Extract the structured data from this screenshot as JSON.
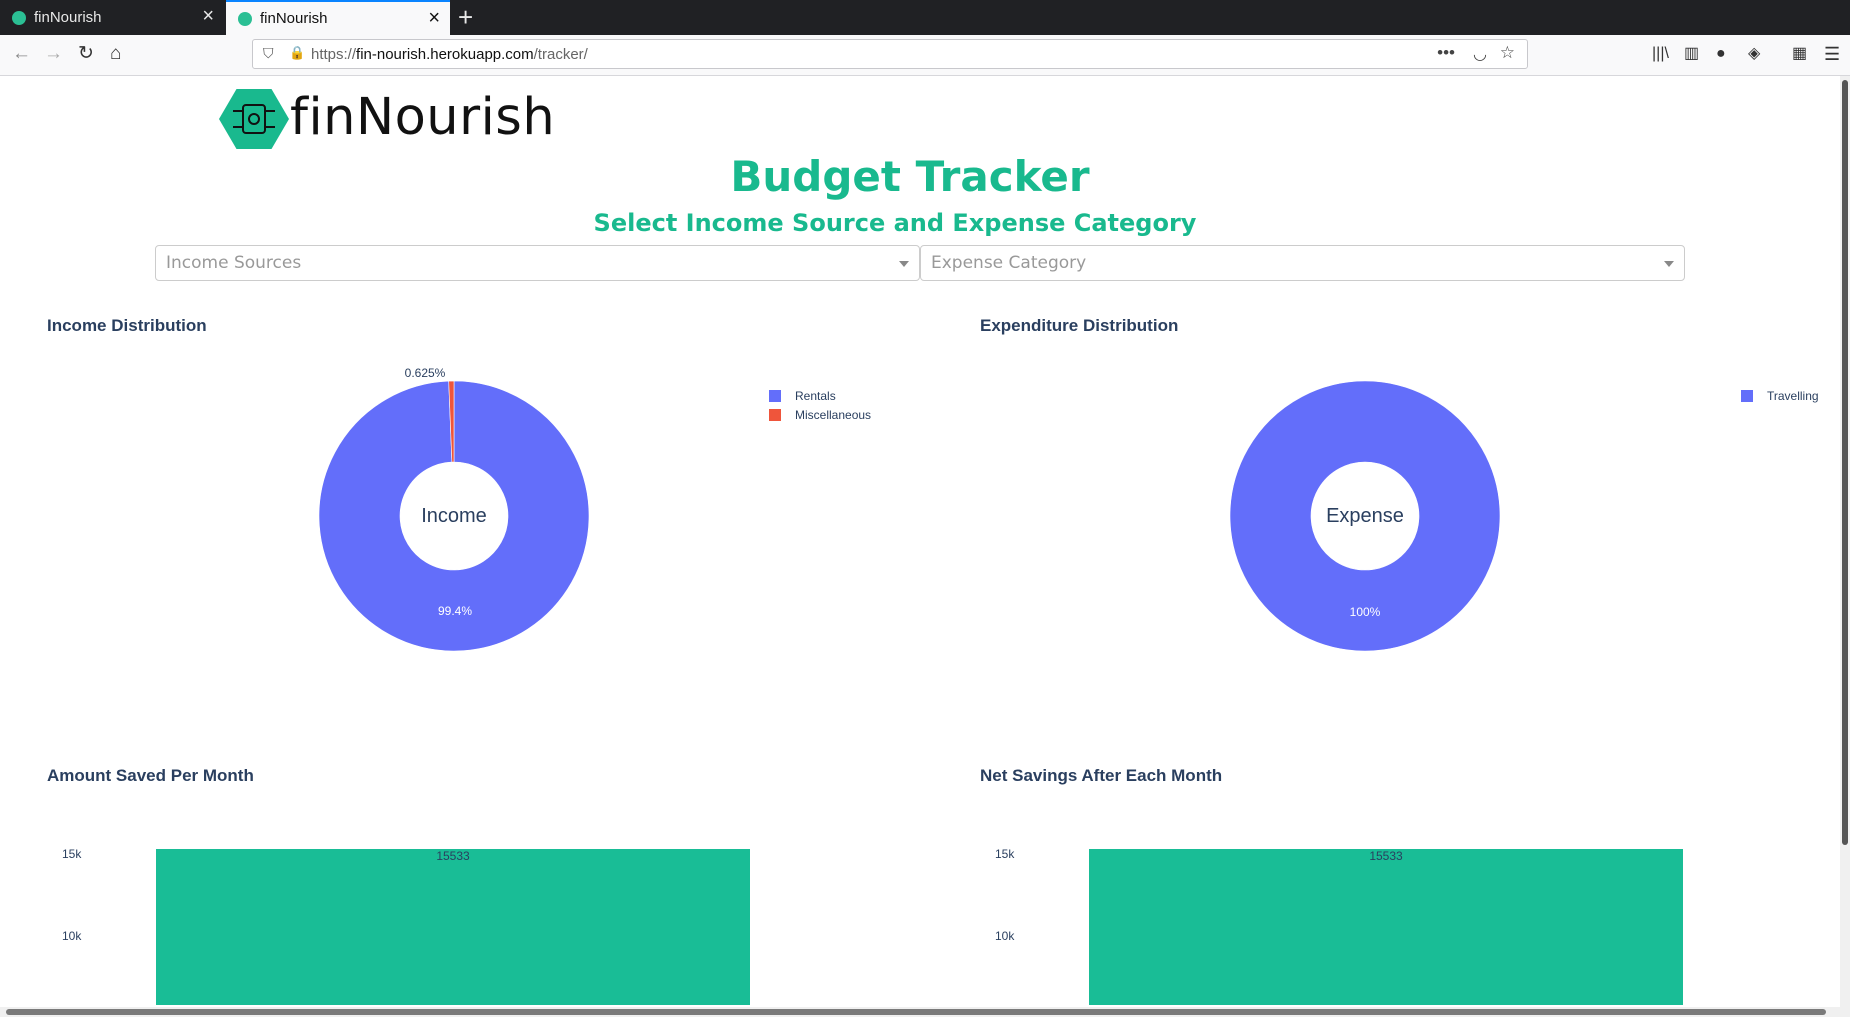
{
  "browser": {
    "tabs": [
      {
        "title": "finNourish",
        "active": false
      },
      {
        "title": "finNourish",
        "active": true
      }
    ],
    "url_prefix": "https://",
    "url_host": "fin-nourish.herokuapp.com",
    "url_path": "/tracker/"
  },
  "header": {
    "logo_text": "finNourish",
    "title": "Budget Tracker",
    "subtitle": "Select Income Source and Expense Category"
  },
  "dropdowns": {
    "income": {
      "placeholder": "Income Sources"
    },
    "expense": {
      "placeholder": "Expense Category"
    }
  },
  "colors": {
    "brand": "#19b98e",
    "rentals": "#636efa",
    "miscellaneous": "#ef553b",
    "travelling": "#636efa",
    "bar": "#19bd96"
  },
  "chart_data": [
    {
      "type": "pie",
      "title": "Income Distribution",
      "center_label": "Income",
      "categories": [
        "Rentals",
        "Miscellaneous"
      ],
      "values": [
        99.375,
        0.625
      ],
      "labels": [
        "99.4%",
        "0.625%"
      ],
      "legend": [
        "Rentals",
        "Miscellaneous"
      ],
      "legend_position": "right"
    },
    {
      "type": "pie",
      "title": "Expenditure Distribution",
      "center_label": "Expense",
      "categories": [
        "Travelling"
      ],
      "values": [
        100
      ],
      "labels": [
        "100%"
      ],
      "legend": [
        "Travelling"
      ],
      "legend_position": "right"
    },
    {
      "type": "bar",
      "title": "Amount Saved Per Month",
      "categories": [
        ""
      ],
      "values": [
        15533
      ],
      "data_labels": [
        "15533"
      ],
      "yticks": [
        "15k",
        "10k"
      ],
      "ytick_values": [
        15000,
        10000
      ]
    },
    {
      "type": "bar",
      "title": "Net Savings After Each Month",
      "categories": [
        ""
      ],
      "values": [
        15533
      ],
      "data_labels": [
        "15533"
      ],
      "yticks": [
        "15k",
        "10k"
      ],
      "ytick_values": [
        15000,
        10000
      ]
    }
  ]
}
